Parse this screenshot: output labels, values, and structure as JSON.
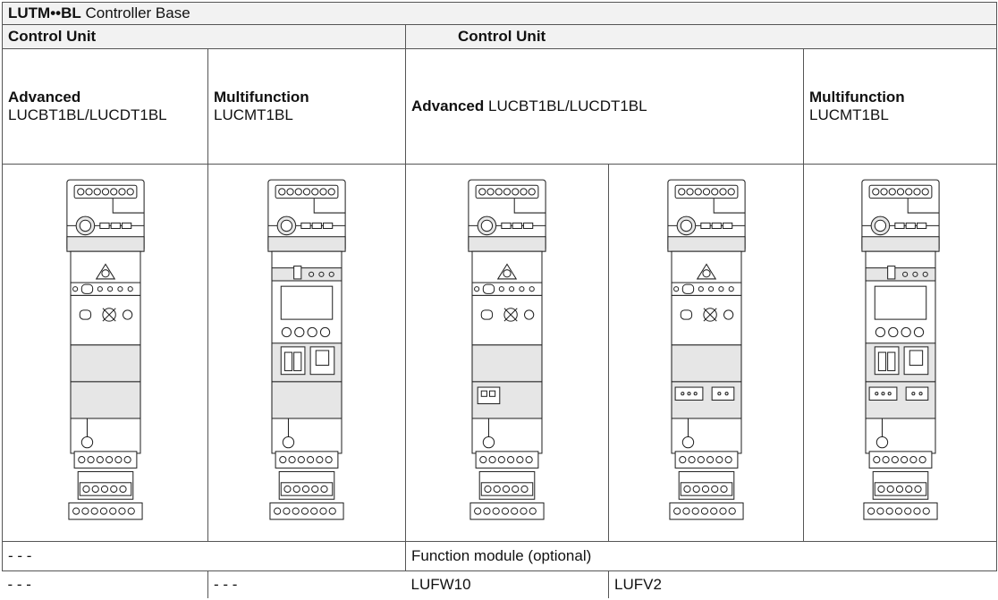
{
  "table": {
    "title": {
      "code": "LUTM••BL",
      "text": "Controller Base"
    },
    "groups": [
      "Control Unit",
      "Control Unit"
    ],
    "headers": [
      {
        "bold": "Advanced",
        "text": "LUCBT1BL/LUCDT1BL"
      },
      {
        "bold": "Multifunction",
        "text": "LUCMT1BL"
      },
      {
        "bold": "Advanced",
        "text": "LUCBT1BL/LUCDT1BL"
      },
      {
        "bold": "Multifunction",
        "text": "LUCMT1BL"
      }
    ],
    "rows": [
      [
        "- - -",
        "Function module (optional)"
      ],
      [
        "- - -",
        "- - -",
        "LUFW10",
        "LUFV2"
      ]
    ]
  }
}
